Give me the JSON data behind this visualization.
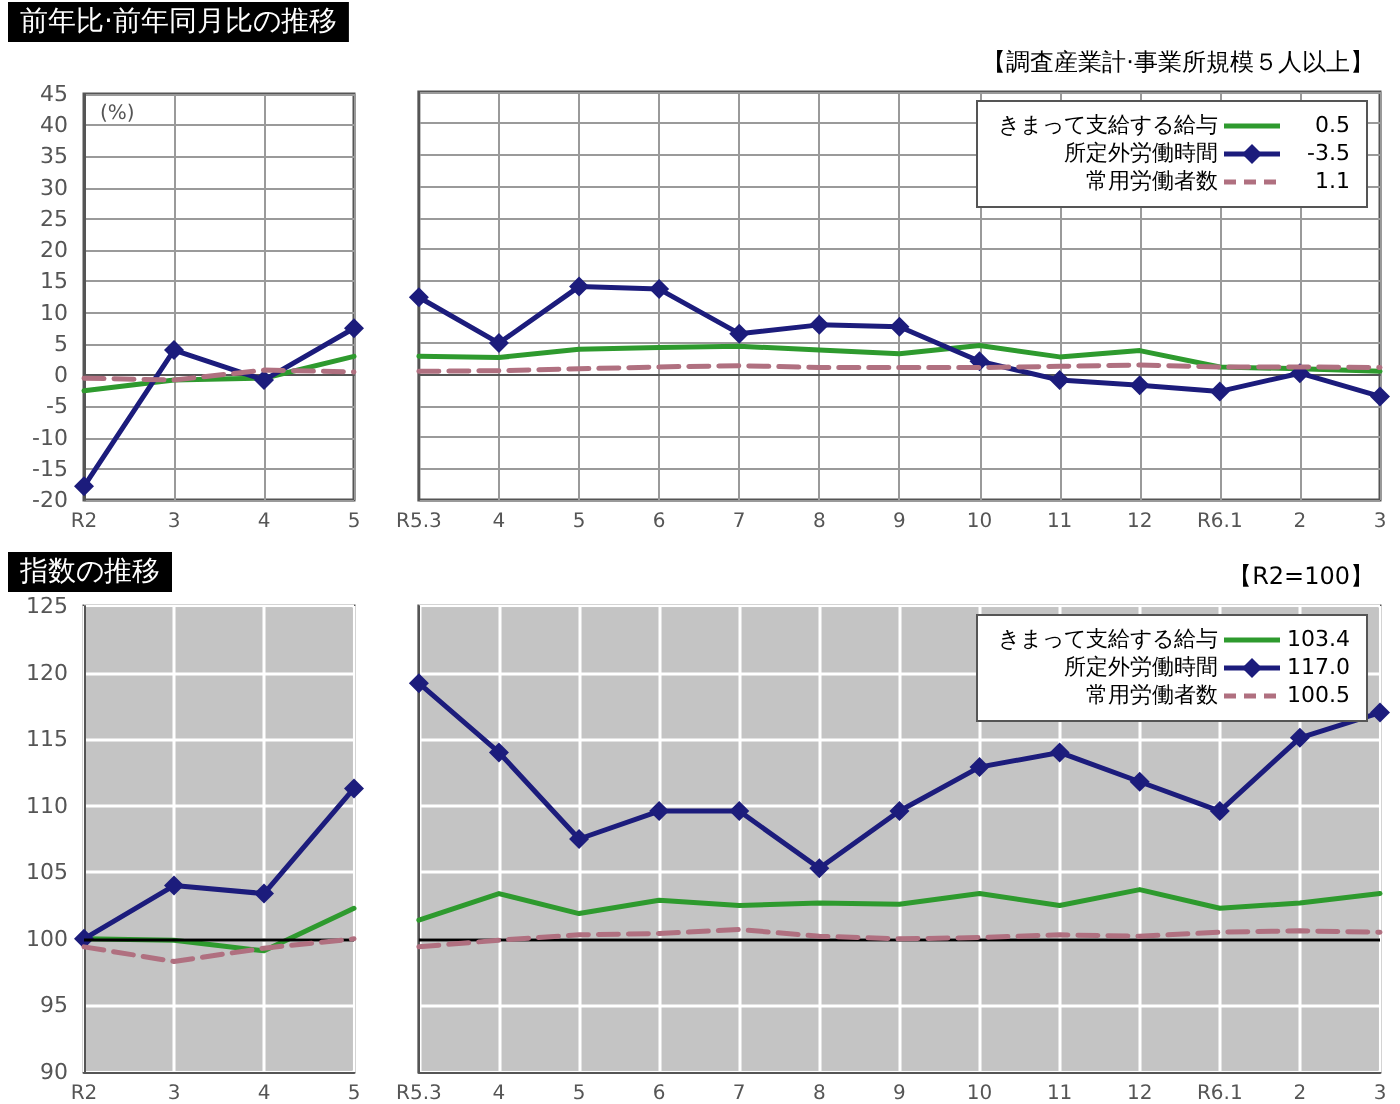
{
  "chart_data": [
    {
      "type": "line",
      "title": "前年比·前年同月比の推移",
      "ylabel": "(%)",
      "categories": [
        "R2",
        "3",
        "4",
        "5"
      ],
      "ylim": [
        -20,
        45
      ],
      "yticks": [
        -20,
        -15,
        -10,
        -5,
        0,
        5,
        10,
        15,
        20,
        25,
        30,
        35,
        40,
        45
      ],
      "grid": true,
      "series": [
        {
          "color": "#2e9a2e",
          "values": [
            -2.5,
            -0.8,
            -0.5,
            3.0
          ]
        },
        {
          "color": "#1c1c7c",
          "marker": "diamond",
          "values": [
            -17.8,
            4.0,
            -0.8,
            7.5
          ]
        },
        {
          "color": "#b07080",
          "line_style": "dashed",
          "values": [
            -0.5,
            -0.8,
            0.8,
            0.5
          ]
        }
      ]
    },
    {
      "type": "line",
      "annotations": [
        "【調査産業計·事業所規模５人以上】",
        "0.5",
        "-3.5",
        "1.1"
      ],
      "categories": [
        "R5.3",
        "4",
        "5",
        "6",
        "7",
        "8",
        "9",
        "10",
        "11",
        "12",
        "R6.1",
        "2",
        "3"
      ],
      "ylim": [
        -20,
        45
      ],
      "yticks": [
        -20,
        -15,
        -10,
        -5,
        0,
        5,
        10,
        15,
        20,
        25,
        30,
        35,
        40,
        45
      ],
      "tick_labels": "x",
      "grid": true,
      "legend": "top right",
      "series": [
        {
          "name": "きまって支給する給与",
          "color": "#2e9a2e",
          "values": [
            2.9,
            2.7,
            4.0,
            4.3,
            4.5,
            3.9,
            3.3,
            4.6,
            2.8,
            3.8,
            1.2,
            0.9,
            0.5
          ]
        },
        {
          "name": "所定外労働時間",
          "color": "#1c1c7c",
          "marker": "diamond",
          "values": [
            12.3,
            5.0,
            14.0,
            13.6,
            6.5,
            7.9,
            7.6,
            2.1,
            -0.9,
            -1.7,
            -2.7,
            0.2,
            -3.5
          ]
        },
        {
          "name": "常用労働者数",
          "color": "#b07080",
          "line_style": "dashed",
          "values": [
            0.5,
            0.6,
            0.9,
            1.2,
            1.4,
            1.1,
            1.1,
            1.1,
            1.3,
            1.5,
            1.2,
            1.2,
            1.1
          ]
        }
      ]
    },
    {
      "type": "line",
      "title": "指数の推移",
      "categories": [
        "R2",
        "3",
        "4",
        "5"
      ],
      "ylim": [
        90,
        125
      ],
      "yticks": [
        90,
        95,
        100,
        105,
        110,
        115,
        120,
        125
      ],
      "grid": true,
      "ref_lines": [
        {
          "axis": "y",
          "value": 100,
          "label": null,
          "color": "#000000"
        }
      ],
      "series": [
        {
          "color": "#2e9a2e",
          "values": [
            100,
            99.9,
            99.1,
            102.3
          ]
        },
        {
          "color": "#1c1c7c",
          "marker": "diamond",
          "values": [
            100,
            104.0,
            103.4,
            111.3
          ]
        },
        {
          "color": "#b07080",
          "line_style": "dashed",
          "values": [
            99.4,
            98.3,
            99.3,
            100.0
          ]
        }
      ]
    },
    {
      "type": "line",
      "annotations": [
        "【R2=100】",
        "103.4",
        "117.0",
        "100.5"
      ],
      "categories": [
        "R5.3",
        "4",
        "5",
        "6",
        "7",
        "8",
        "9",
        "10",
        "11",
        "12",
        "R6.1",
        "2",
        "3"
      ],
      "ylim": [
        90,
        125
      ],
      "yticks": [
        90,
        95,
        100,
        105,
        110,
        115,
        120,
        125
      ],
      "tick_labels": "x",
      "grid": true,
      "legend": "top right",
      "ref_lines": [
        {
          "axis": "y",
          "value": 100,
          "label": null,
          "color": "#000000"
        }
      ],
      "series": [
        {
          "name": "きまって支給する給与",
          "color": "#2e9a2e",
          "values": [
            101.4,
            103.4,
            101.9,
            102.9,
            102.5,
            102.7,
            102.6,
            103.4,
            102.5,
            103.7,
            102.3,
            102.7,
            103.4
          ]
        },
        {
          "name": "所定外労働時間",
          "color": "#1c1c7c",
          "marker": "diamond",
          "values": [
            119.2,
            114.0,
            107.5,
            109.6,
            109.6,
            105.3,
            109.6,
            112.9,
            114.0,
            111.8,
            109.6,
            115.1,
            117.0
          ]
        },
        {
          "name": "常用労働者数",
          "color": "#b07080",
          "line_style": "dashed",
          "values": [
            99.4,
            99.9,
            100.3,
            100.4,
            100.7,
            100.2,
            100.0,
            100.1,
            100.3,
            100.2,
            100.5,
            100.6,
            100.5
          ]
        }
      ]
    }
  ]
}
